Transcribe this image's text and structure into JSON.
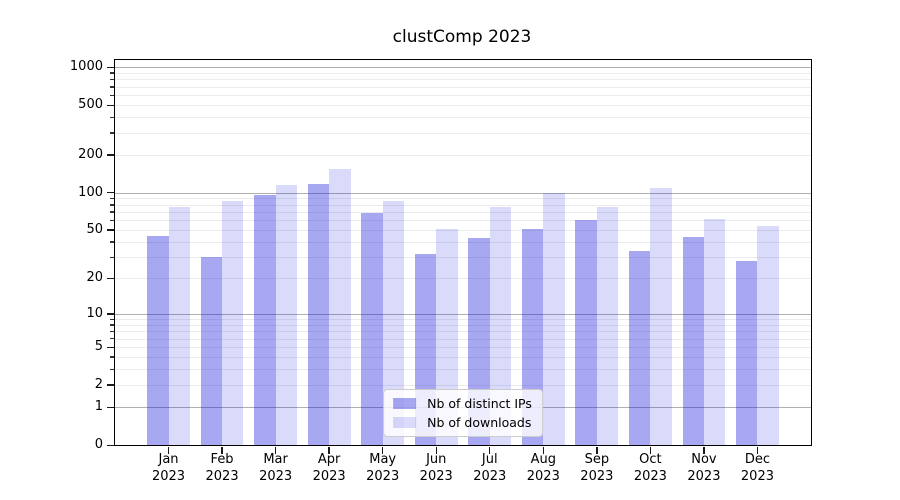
{
  "chart_data": {
    "type": "bar",
    "title": "clustComp 2023",
    "categories": [
      "Jan",
      "Feb",
      "Mar",
      "Apr",
      "May",
      "Jun",
      "Jul",
      "Aug",
      "Sep",
      "Oct",
      "Nov",
      "Dec"
    ],
    "category_year_line": "2023",
    "series": [
      {
        "name": "Nb of distinct IPs",
        "color": "rgba(10,10,220,0.36)",
        "values": [
          45,
          30,
          95,
          118,
          69,
          32,
          43,
          51,
          60,
          34,
          44,
          28
        ]
      },
      {
        "name": "Nb of downloads",
        "color": "rgba(10,10,220,0.15)",
        "values": [
          77,
          85,
          116,
          155,
          86,
          51,
          76,
          100,
          77,
          108,
          61,
          54
        ]
      }
    ],
    "xlabel": "",
    "ylabel": "",
    "yscale": "symlog",
    "yticks": [
      0,
      1,
      2,
      5,
      10,
      20,
      50,
      100,
      200,
      500,
      1000
    ],
    "ylim": [
      0,
      1140
    ],
    "grid": true,
    "legend_position": "lower center",
    "colors": {
      "bar_distinct_ips": "#a6a6f0",
      "bar_downloads": "#d9d9f8",
      "major_grid": "#b0b0b0",
      "minor_grid": "#ececec",
      "axis": "#000000",
      "background": "#ffffff"
    }
  }
}
